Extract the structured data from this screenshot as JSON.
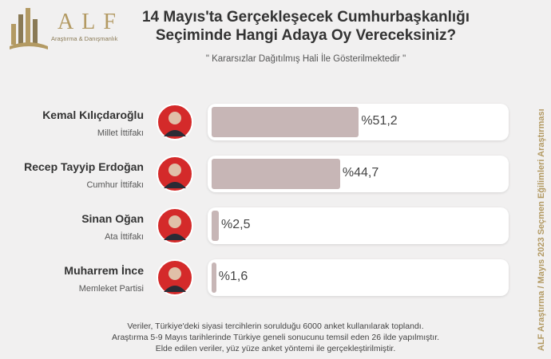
{
  "chart_data": {
    "type": "bar",
    "brand": "ALF",
    "brand_tagline": "Araştırma & Danışmanlık",
    "title": "14 Mayıs'ta Gerçekleşecek Cumhurbaşkanlığı Seçiminde Hangi Adaya Oy Vereceksiniz?",
    "subtitle": "\" Kararsızlar Dağıtılmış Hali İle Gösterilmektedir \"",
    "categories": [
      "Kemal Kılıçdaroğlu",
      "Recep Tayyip Erdoğan",
      "Sinan Oğan",
      "Muharrem İnce"
    ],
    "alliances": [
      "Millet İttifakı",
      "Cumhur İttifakı",
      "Ata İttifakı",
      "Memleket Partisi"
    ],
    "values": [
      51.2,
      44.7,
      2.5,
      1.6
    ],
    "value_labels": [
      "%51,2",
      "%44,7",
      "%2,5",
      "%1,6"
    ],
    "color": "#c7b6b6",
    "footer_lines": [
      "Veriler, Türkiye'deki siyasi tercihlerin sorulduğu 6000 anket kullanılarak toplandı.",
      "Araştırma 5-9 Mayıs tarihlerinde Türkiye geneli sonucunu temsil eden 26 ilde yapılmıştır.",
      "Elde edilen veriler, yüz yüze anket yöntemi ile gerçekleştirilmiştir."
    ],
    "side_note": "ALF Araştırma / Mayıs 2023 Seçmen Eğilimleri Araştırması"
  }
}
